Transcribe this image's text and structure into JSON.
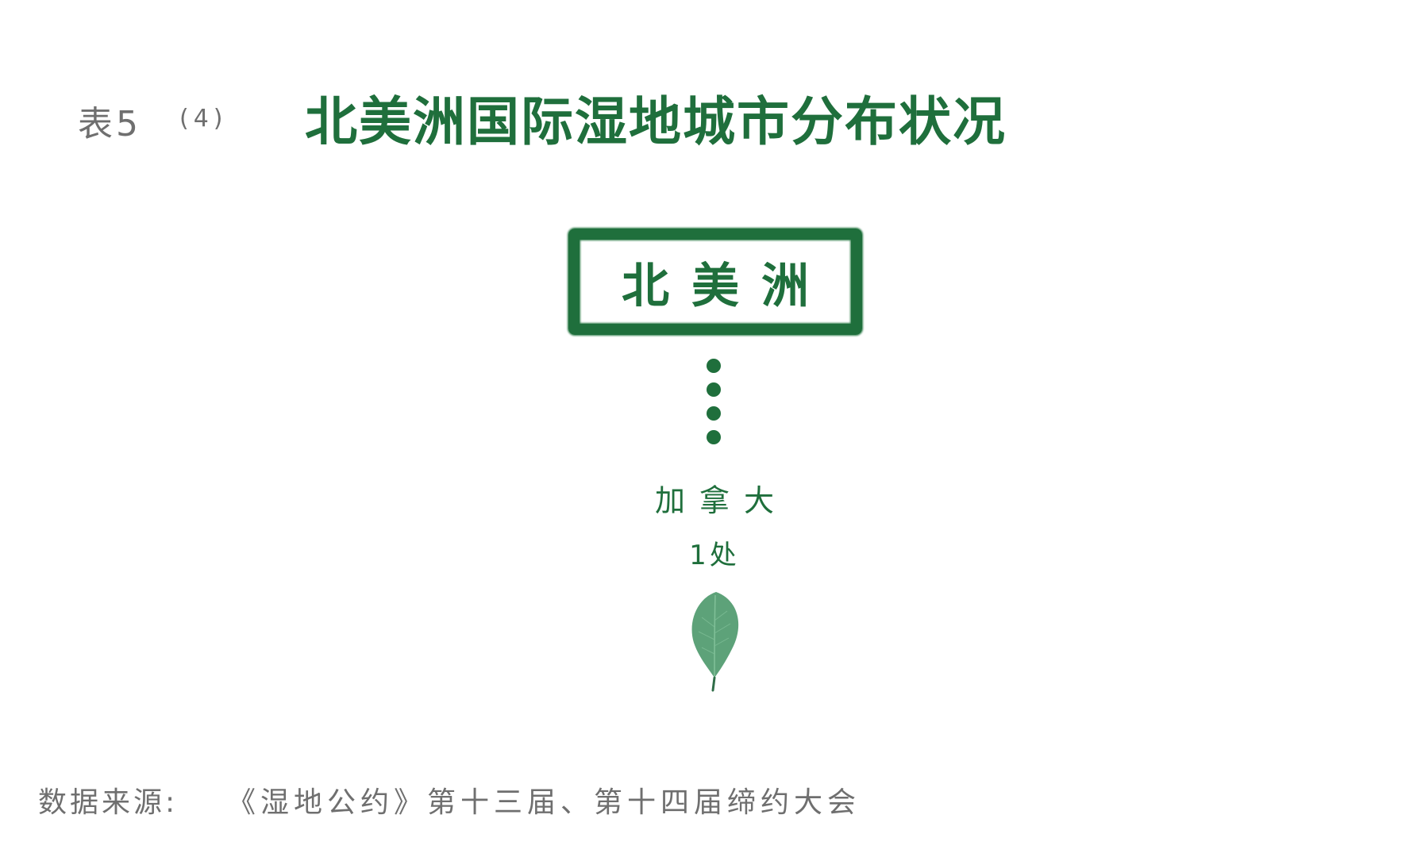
{
  "header": {
    "table_label": "表5",
    "table_number": "(4)",
    "title": "北美洲国际湿地城市分布状况"
  },
  "diagram": {
    "region": "北美洲",
    "countries": [
      {
        "name": "加拿大",
        "count": "1处"
      }
    ],
    "colors": {
      "primary_green": "#1f6f3c",
      "leaf_green": "#4f9a6e",
      "label_gray": "#6f6f6f"
    },
    "icons": [
      "leaf-icon"
    ]
  },
  "footer": {
    "source_label": "数据来源:",
    "source_text": "《湿地公约》第十三届、第十四届缔约大会"
  }
}
